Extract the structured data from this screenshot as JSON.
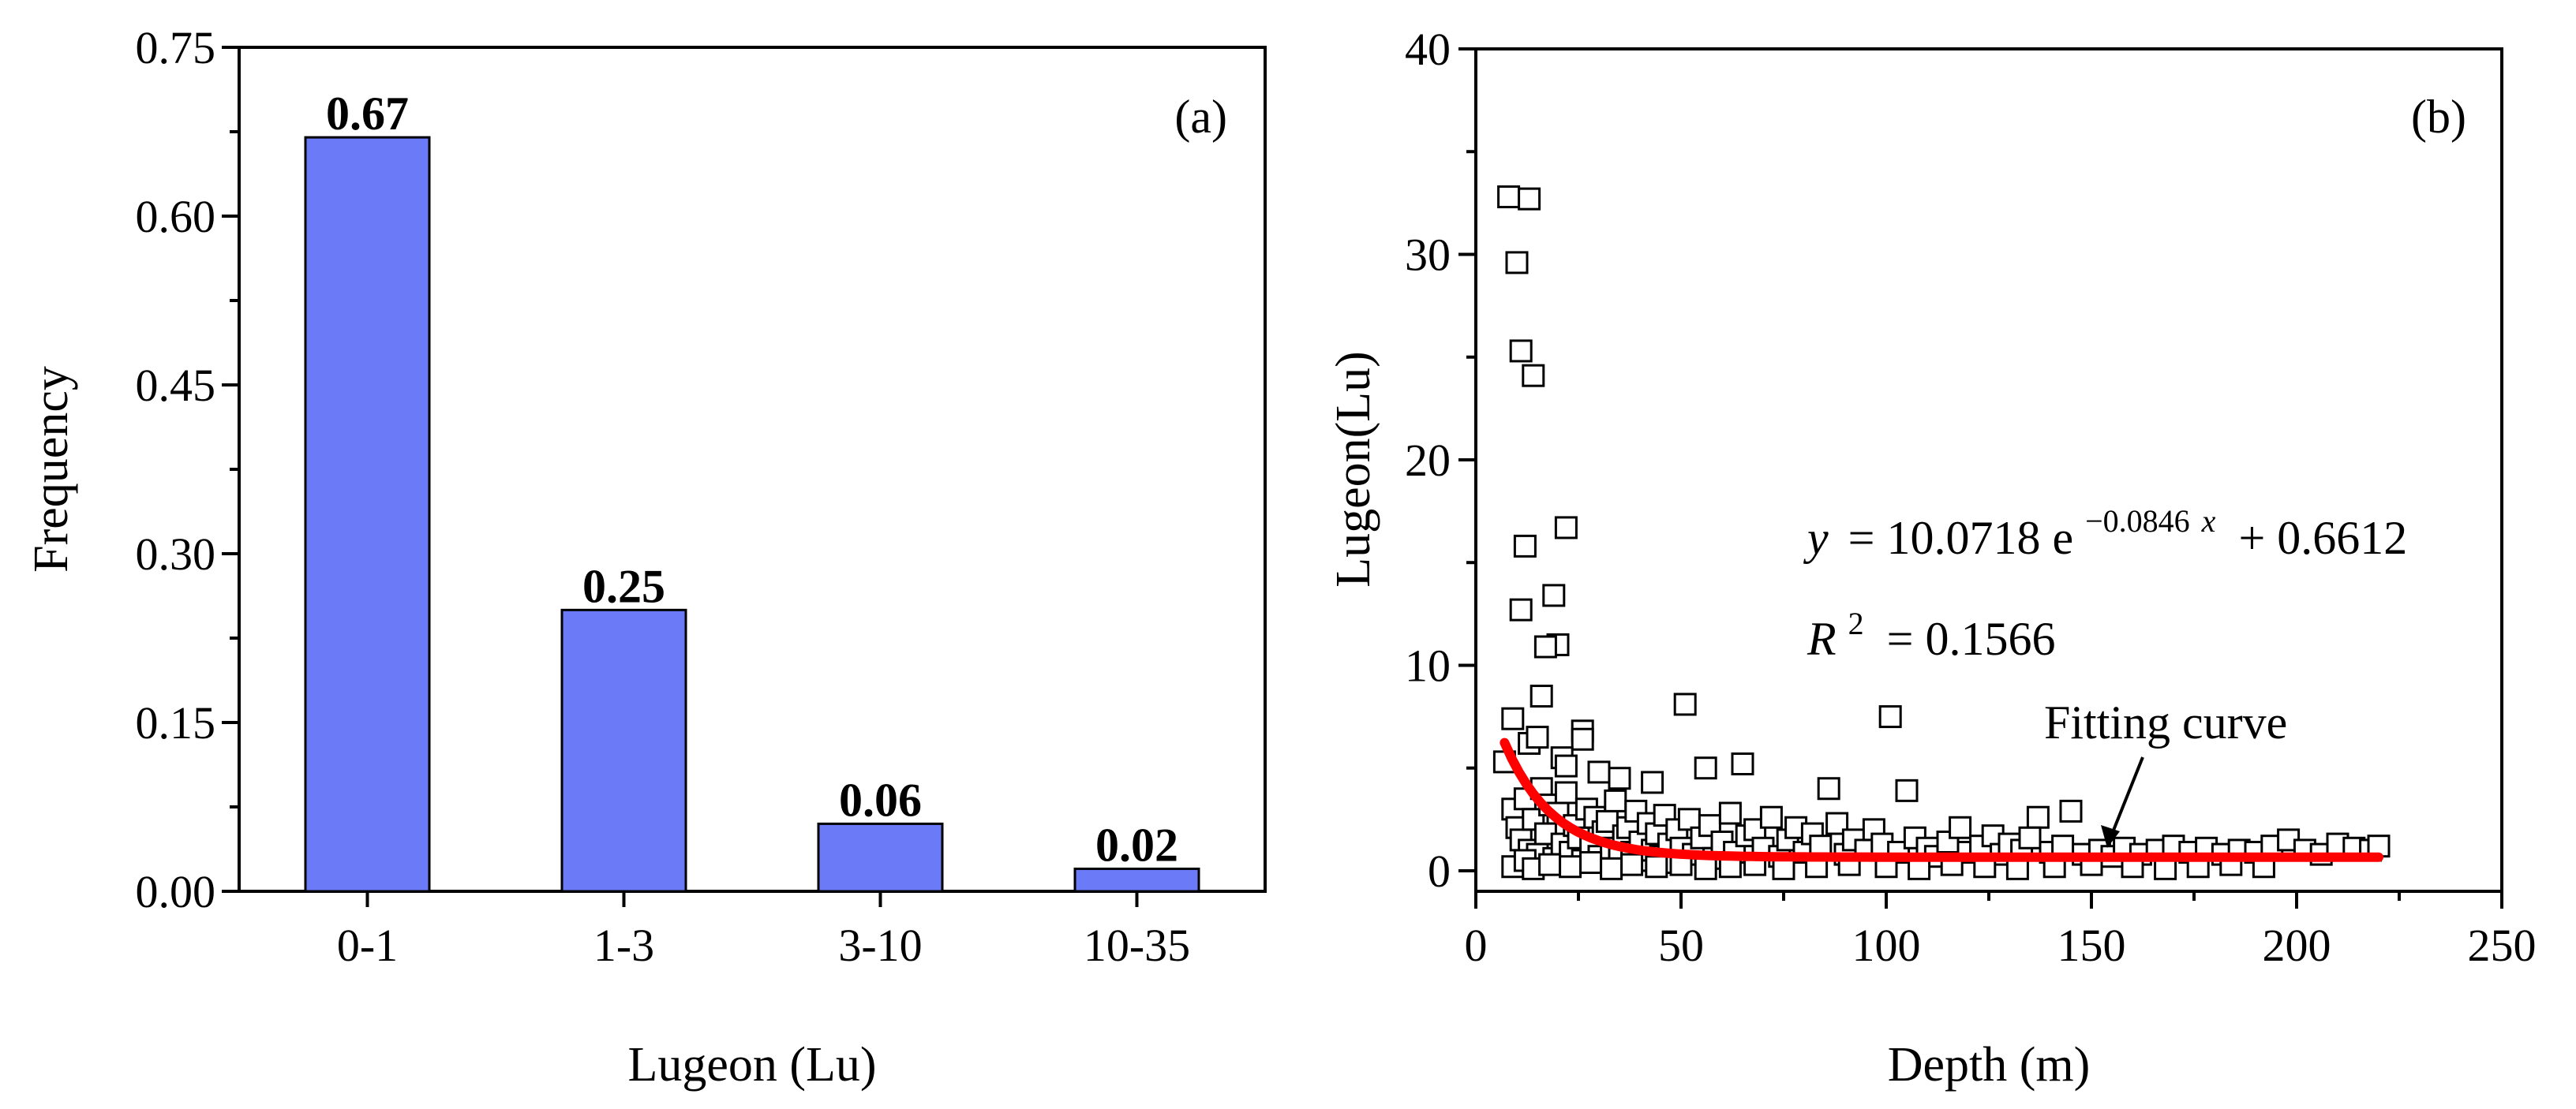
{
  "chart_data": [
    {
      "panel": "(a)",
      "type": "bar",
      "categories": [
        "0-1",
        "1-3",
        "3-10",
        "10-35"
      ],
      "values": [
        0.67,
        0.25,
        0.06,
        0.02
      ],
      "value_labels": [
        "0.67",
        "0.25",
        "0.06",
        "0.02"
      ],
      "xlabel": "Lugeon (Lu)",
      "ylabel": "Frequency",
      "ylim": [
        0,
        0.75
      ],
      "yticks": [
        0.0,
        0.15,
        0.3,
        0.45,
        0.6,
        0.75
      ],
      "ytick_labels": [
        "0.00",
        "0.15",
        "0.30",
        "0.45",
        "0.60",
        "0.75"
      ],
      "colors": {
        "bar_fill": "#6b7bf7",
        "bar_stroke": "#000000"
      }
    },
    {
      "panel": "(b)",
      "type": "scatter",
      "xlabel": "Depth (m)",
      "ylabel": "Lugeon(Lu)",
      "xlim": [
        0,
        250
      ],
      "ylim": [
        -1,
        40
      ],
      "xticks": [
        0,
        50,
        100,
        150,
        200,
        250
      ],
      "xtick_labels": [
        "0",
        "50",
        "100",
        "150",
        "200",
        "250"
      ],
      "yticks": [
        0,
        10,
        20,
        30,
        40
      ],
      "ytick_labels": [
        "0",
        "10",
        "20",
        "30",
        "40"
      ],
      "points": [
        [
          8,
          32.8
        ],
        [
          13,
          32.7
        ],
        [
          10,
          29.6
        ],
        [
          11,
          25.3
        ],
        [
          14,
          24.1
        ],
        [
          22,
          16.7
        ],
        [
          12,
          15.8
        ],
        [
          19,
          13.4
        ],
        [
          11,
          12.7
        ],
        [
          20,
          11.0
        ],
        [
          17,
          10.9
        ],
        [
          16,
          8.5
        ],
        [
          51,
          8.1
        ],
        [
          101,
          7.5
        ],
        [
          9,
          7.4
        ],
        [
          26,
          6.8
        ],
        [
          26,
          6.4
        ],
        [
          13,
          6.2
        ],
        [
          15,
          6.5
        ],
        [
          21,
          5.5
        ],
        [
          22,
          5.1
        ],
        [
          65,
          5.2
        ],
        [
          56,
          5.0
        ],
        [
          30,
          4.8
        ],
        [
          35,
          4.5
        ],
        [
          43,
          4.3
        ],
        [
          86,
          4.0
        ],
        [
          105,
          3.9
        ],
        [
          145,
          2.9
        ],
        [
          137,
          2.6
        ],
        [
          7,
          5.3
        ],
        [
          9,
          3.0
        ],
        [
          10,
          2.1
        ],
        [
          11,
          1.5
        ],
        [
          12,
          3.5
        ],
        [
          13,
          1.0
        ],
        [
          14,
          2.5
        ],
        [
          15,
          0.8
        ],
        [
          16,
          4.0
        ],
        [
          17,
          1.8
        ],
        [
          18,
          3.2
        ],
        [
          19,
          0.6
        ],
        [
          20,
          2.8
        ],
        [
          21,
          1.3
        ],
        [
          22,
          3.8
        ],
        [
          23,
          0.9
        ],
        [
          24,
          2.2
        ],
        [
          25,
          1.6
        ],
        [
          26,
          0.5
        ],
        [
          27,
          3.0
        ],
        [
          28,
          1.2
        ],
        [
          29,
          2.6
        ],
        [
          30,
          0.7
        ],
        [
          31,
          1.9
        ],
        [
          32,
          2.4
        ],
        [
          33,
          1.1
        ],
        [
          34,
          3.4
        ],
        [
          35,
          0.6
        ],
        [
          36,
          1.7
        ],
        [
          37,
          2.1
        ],
        [
          38,
          0.9
        ],
        [
          39,
          2.9
        ],
        [
          40,
          1.4
        ],
        [
          41,
          0.5
        ],
        [
          42,
          2.3
        ],
        [
          43,
          1.0
        ],
        [
          44,
          1.8
        ],
        [
          45,
          0.7
        ],
        [
          46,
          2.7
        ],
        [
          47,
          1.3
        ],
        [
          48,
          0.4
        ],
        [
          49,
          2.0
        ],
        [
          50,
          1.1
        ],
        [
          52,
          2.5
        ],
        [
          53,
          0.8
        ],
        [
          55,
          1.6
        ],
        [
          57,
          2.2
        ],
        [
          58,
          0.6
        ],
        [
          60,
          1.4
        ],
        [
          62,
          2.8
        ],
        [
          63,
          0.9
        ],
        [
          66,
          1.7
        ],
        [
          68,
          2.0
        ],
        [
          70,
          1.1
        ],
        [
          72,
          2.6
        ],
        [
          74,
          0.7
        ],
        [
          76,
          1.5
        ],
        [
          78,
          2.1
        ],
        [
          80,
          0.9
        ],
        [
          82,
          1.8
        ],
        [
          84,
          1.2
        ],
        [
          88,
          2.3
        ],
        [
          90,
          0.8
        ],
        [
          92,
          1.5
        ],
        [
          95,
          1.0
        ],
        [
          97,
          2.0
        ],
        [
          99,
          1.3
        ],
        [
          103,
          0.9
        ],
        [
          107,
          1.6
        ],
        [
          110,
          1.1
        ],
        [
          112,
          0.7
        ],
        [
          115,
          1.4
        ],
        [
          118,
          2.1
        ],
        [
          120,
          0.9
        ],
        [
          123,
          1.2
        ],
        [
          126,
          1.7
        ],
        [
          128,
          0.8
        ],
        [
          130,
          1.3
        ],
        [
          133,
          1.0
        ],
        [
          135,
          1.6
        ],
        [
          140,
          0.9
        ],
        [
          143,
          1.2
        ],
        [
          148,
          0.8
        ],
        [
          152,
          1.0
        ],
        [
          155,
          0.7
        ],
        [
          158,
          1.1
        ],
        [
          162,
          0.8
        ],
        [
          166,
          1.0
        ],
        [
          170,
          1.2
        ],
        [
          174,
          0.9
        ],
        [
          178,
          1.1
        ],
        [
          182,
          0.8
        ],
        [
          186,
          1.0
        ],
        [
          190,
          0.9
        ],
        [
          194,
          1.2
        ],
        [
          198,
          1.5
        ],
        [
          202,
          1.0
        ],
        [
          206,
          0.8
        ],
        [
          210,
          1.3
        ],
        [
          214,
          1.1
        ],
        [
          218,
          1.0
        ],
        [
          220,
          1.2
        ],
        [
          9,
          0.2
        ],
        [
          12,
          0.5
        ],
        [
          14,
          0.1
        ],
        [
          18,
          0.3
        ],
        [
          23,
          0.2
        ],
        [
          28,
          0.4
        ],
        [
          33,
          0.1
        ],
        [
          38,
          0.3
        ],
        [
          44,
          0.2
        ],
        [
          50,
          0.3
        ],
        [
          56,
          0.1
        ],
        [
          62,
          0.2
        ],
        [
          68,
          0.3
        ],
        [
          75,
          0.1
        ],
        [
          83,
          0.2
        ],
        [
          91,
          0.3
        ],
        [
          100,
          0.2
        ],
        [
          108,
          0.1
        ],
        [
          116,
          0.3
        ],
        [
          124,
          0.2
        ],
        [
          132,
          0.1
        ],
        [
          141,
          0.2
        ],
        [
          150,
          0.3
        ],
        [
          160,
          0.2
        ],
        [
          168,
          0.1
        ],
        [
          176,
          0.2
        ],
        [
          184,
          0.3
        ],
        [
          192,
          0.2
        ]
      ],
      "fit": {
        "name": "Fitting curve",
        "a": 10.0718,
        "b": -0.0846,
        "c": 0.6612,
        "x_range": [
          7,
          220
        ],
        "equation_parts": {
          "y": "y",
          "eq": "= 10.0718 e",
          "exp": "−0.0846",
          "x": "x",
          "tail": "+ 0.6612"
        },
        "r2_parts": {
          "R": "R",
          "sup": "2",
          "rest": "= 0.1566"
        },
        "color": "#ff0000"
      },
      "annotation": "Fitting curve"
    }
  ]
}
